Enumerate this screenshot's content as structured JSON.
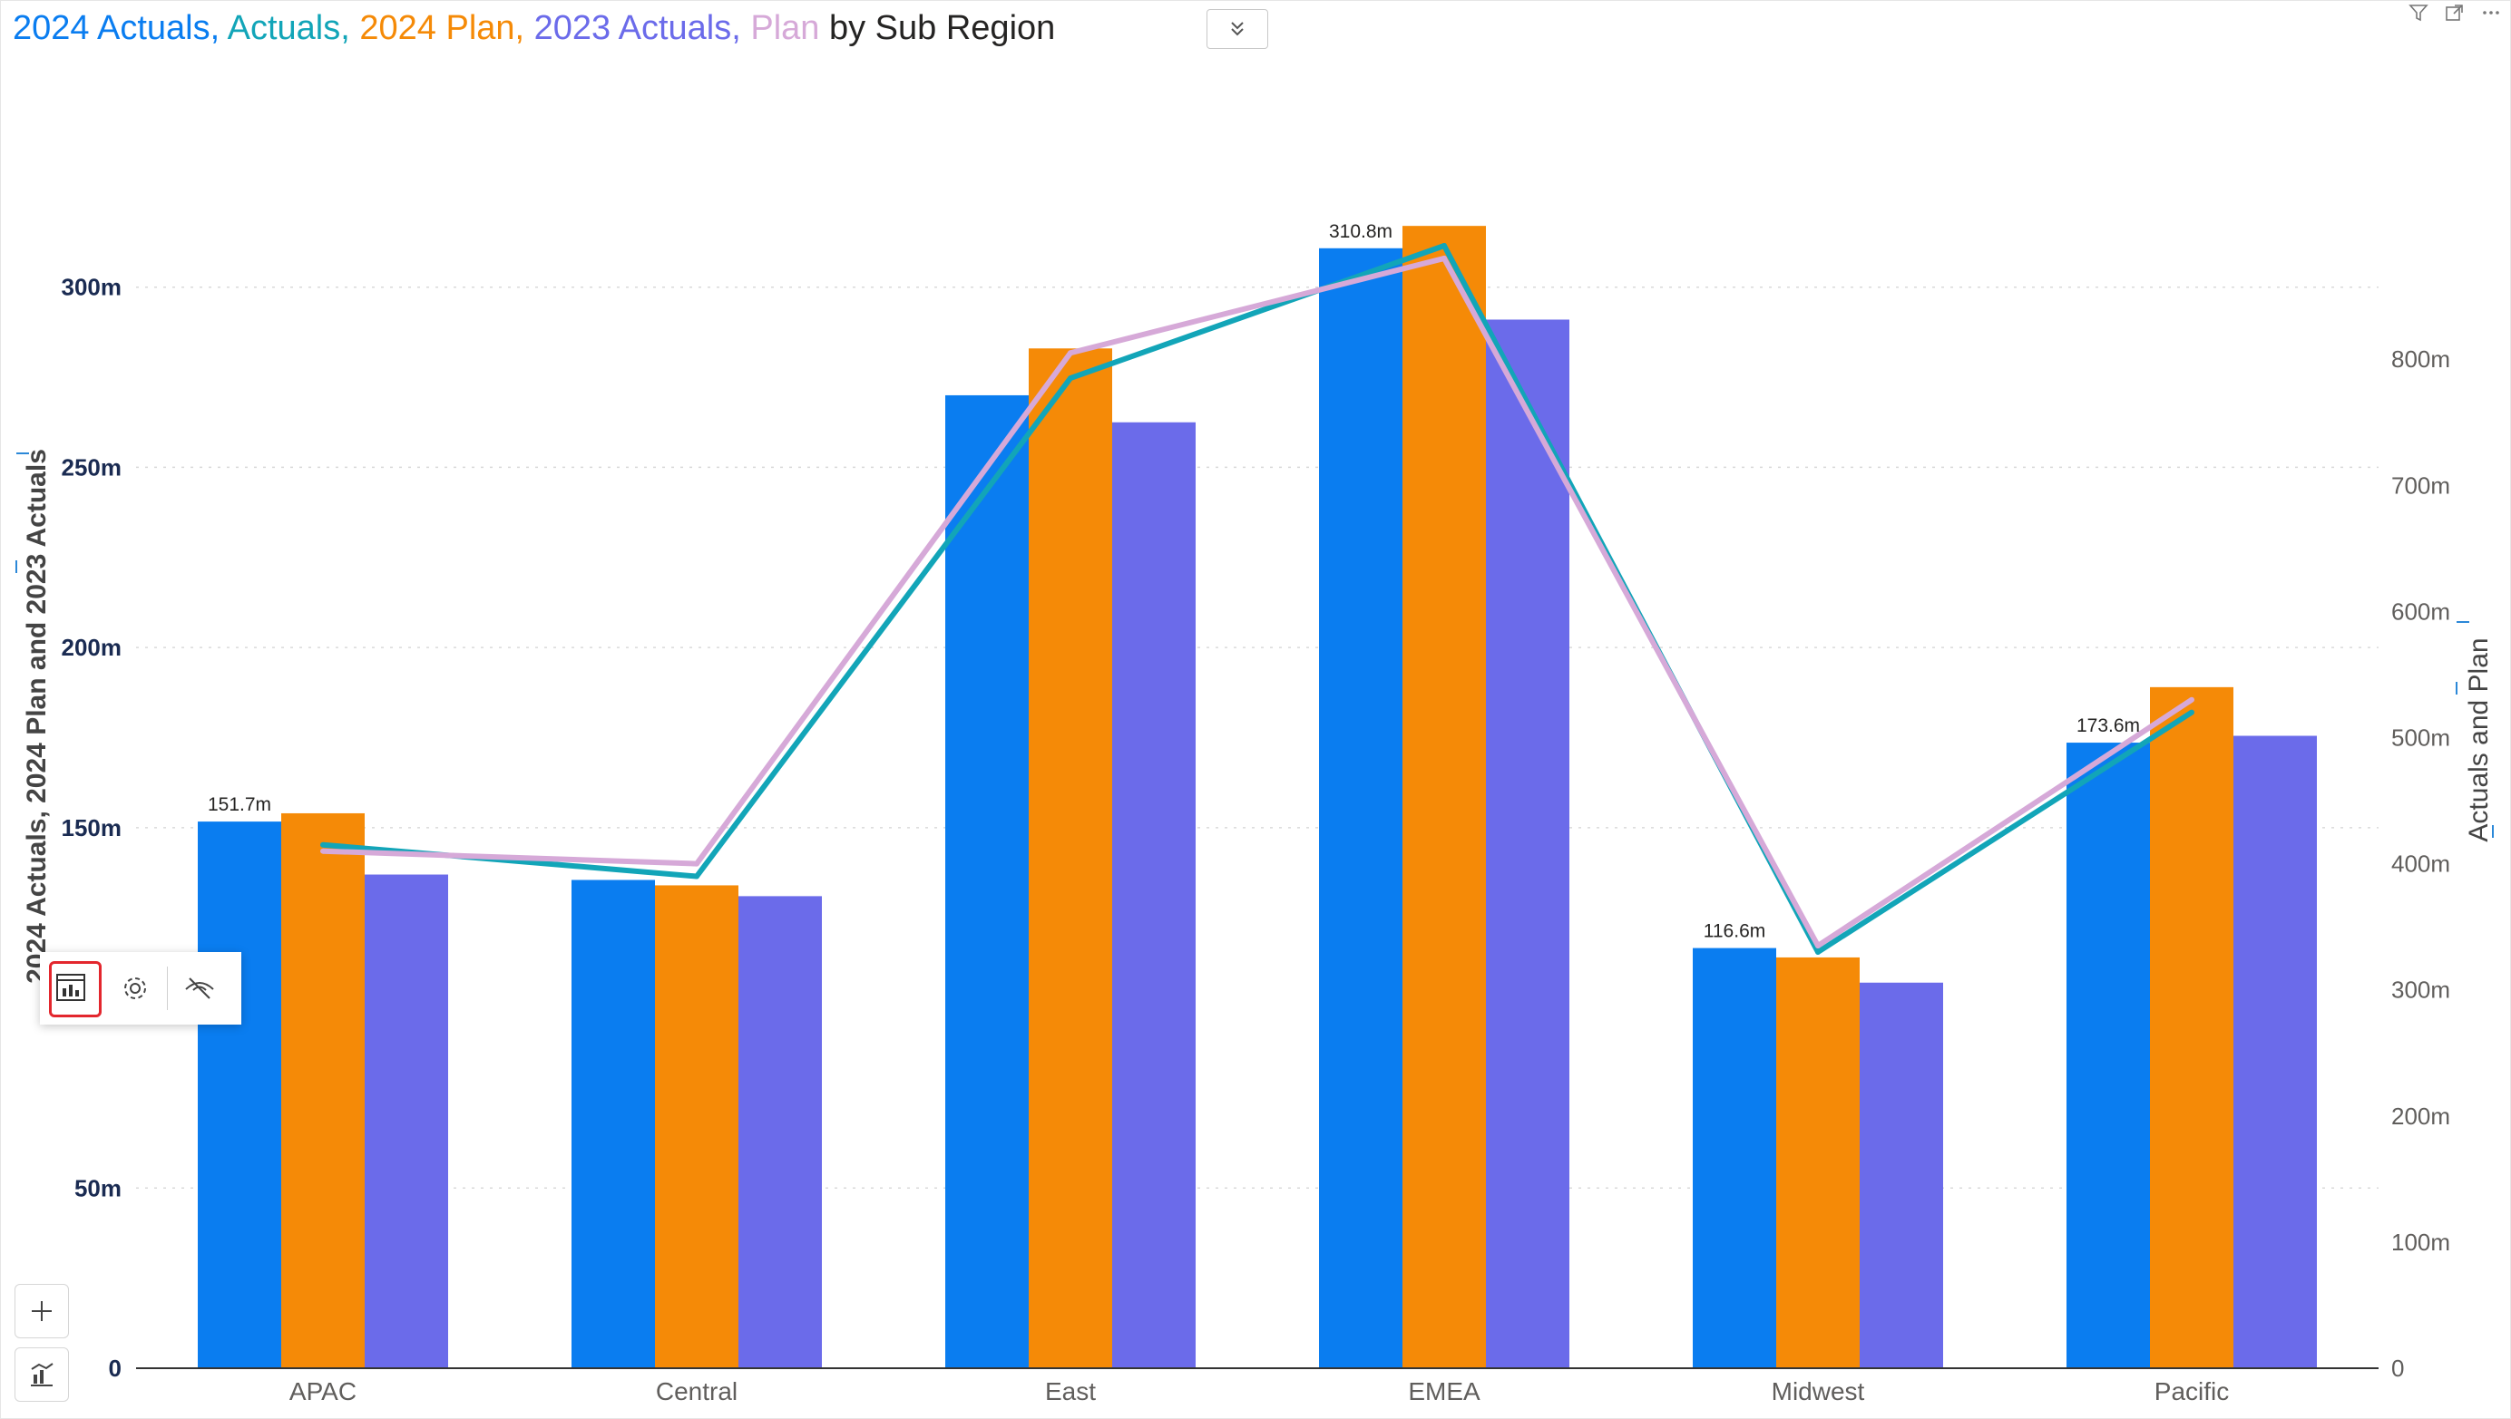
{
  "title_parts": [
    {
      "text": "2024 Actuals, ",
      "color": "#0a7df0"
    },
    {
      "text": "Actuals, ",
      "color": "#12a5b8"
    },
    {
      "text": "2024 Plan, ",
      "color": "#f58a07"
    },
    {
      "text": "2023 Actuals, ",
      "color": "#6b6bea"
    },
    {
      "text": "Plan",
      "color": "#d6a9d8"
    },
    {
      "text": " by Sub Region",
      "color": "#252423"
    }
  ],
  "icons": {
    "collapse": "double-chevron-down-icon",
    "filter": "filter-icon",
    "focus": "focus-mode-icon",
    "more": "more-options-icon",
    "toolbar": [
      "chart-visual-icon",
      "gear-icon",
      "hide-eye-icon"
    ],
    "side": [
      "plus-icon",
      "analytics-icon"
    ]
  },
  "chart_data": {
    "type": "bar",
    "categories": [
      "APAC",
      "Central",
      "East",
      "EMEA",
      "Midwest",
      "Pacific"
    ],
    "series": [
      {
        "name": "2024 Actuals",
        "axis": "left",
        "type": "bar",
        "color": "#0a7df0",
        "values": [
          151.7,
          135.5,
          270.0,
          310.8,
          116.6,
          173.6
        ]
      },
      {
        "name": "2024 Plan",
        "axis": "left",
        "type": "bar",
        "color": "#f58a07",
        "values": [
          154.0,
          134.0,
          283.0,
          317.0,
          114.0,
          189.0
        ]
      },
      {
        "name": "2023 Actuals",
        "axis": "left",
        "type": "bar",
        "color": "#6b6bea",
        "values": [
          137.0,
          131.0,
          262.5,
          291.0,
          107.0,
          175.5
        ]
      },
      {
        "name": "Actuals",
        "axis": "right",
        "type": "line",
        "color": "#12a5b8",
        "values": [
          415,
          390,
          785,
          890,
          330,
          520
        ]
      },
      {
        "name": "Plan",
        "axis": "right",
        "type": "line",
        "color": "#d6a9d8",
        "values": [
          410,
          400,
          805,
          880,
          335,
          530
        ]
      }
    ],
    "data_labels": [
      {
        "category": "APAC",
        "text": "151.7m"
      },
      {
        "category": "EMEA",
        "text": "310.8m"
      },
      {
        "category": "Midwest",
        "text": "116.6m"
      },
      {
        "category": "Pacific",
        "text": "173.6m"
      }
    ],
    "y_left": {
      "label": "2024 Actuals, 2024 Plan and 2023 Actuals",
      "min": 0,
      "max": 350,
      "ticks": [
        0,
        50,
        150,
        200,
        250,
        300
      ],
      "tick_labels": [
        "0",
        "50m",
        "150m",
        "200m",
        "250m",
        "300m"
      ]
    },
    "y_right": {
      "label": "Actuals and Plan",
      "min": 0,
      "max": 1000,
      "ticks": [
        0,
        100,
        200,
        300,
        400,
        500,
        600,
        700,
        800
      ],
      "tick_labels": [
        "0",
        "100m",
        "200m",
        "300m",
        "400m",
        "500m",
        "600m",
        "700m",
        "800m"
      ]
    },
    "grid": true,
    "legend": "title"
  }
}
